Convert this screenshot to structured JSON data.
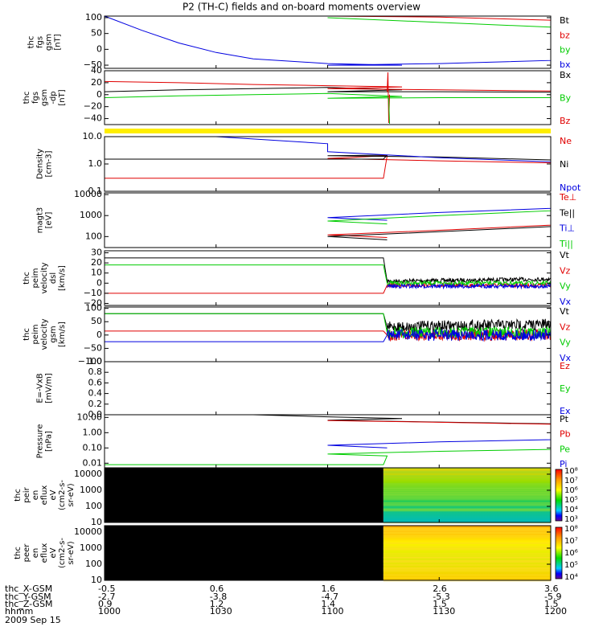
{
  "title": "P2 (TH-C) fields and on-board moments overview",
  "colors": {
    "black": "#000000",
    "red": "#e00000",
    "green": "#00cc00",
    "blue": "#0000e0",
    "yellow": "#ffee00"
  },
  "chart_data": [
    {
      "type": "line",
      "panel": "fgs",
      "ylabel_lines": [
        "thc",
        "fgs",
        "gsm",
        "[nT]"
      ],
      "ticks": [
        "100",
        "50",
        "0",
        "−50"
      ],
      "ylim": [
        -60,
        105
      ],
      "series": [
        {
          "name": "Bt",
          "color": "black",
          "x": [
            1000,
            1200
          ],
          "values": [
            null,
            null
          ]
        },
        {
          "name": "bz",
          "color": "red",
          "x": [
            1100,
            1130,
            1200
          ],
          "values": [
            112,
            102,
            92
          ]
        },
        {
          "name": "by",
          "color": "green",
          "x": [
            1100,
            1130,
            1200
          ],
          "values": [
            100,
            85,
            70
          ]
        },
        {
          "name": "bx",
          "color": "blue",
          "x": [
            1000,
            1010,
            1020,
            1030,
            1040,
            1060,
            1080,
            1100,
            1130,
            1160,
            1200
          ],
          "values": [
            105,
            60,
            20,
            -10,
            -30,
            -45,
            -50,
            -50,
            -45,
            -35,
            -20
          ]
        }
      ]
    },
    {
      "type": "line",
      "panel": "fgs_dp",
      "ylabel_lines": [
        "thc",
        "fgs",
        "gsm",
        "-dp",
        "[nT]"
      ],
      "ticks": [
        "40",
        "20",
        "0",
        "−20",
        "−40"
      ],
      "ylim": [
        -50,
        40
      ],
      "series": [
        {
          "name": "Bx",
          "color": "black",
          "x": [
            1000,
            1020,
            1040,
            1060,
            1080,
            1100,
            1130,
            1160,
            1200
          ],
          "values": [
            5,
            8,
            10,
            12,
            8,
            5,
            5,
            4,
            2
          ]
        },
        {
          "name": "By",
          "color": "green",
          "x": [
            1000,
            1020,
            1040,
            1060,
            1080,
            1100,
            1130,
            1160,
            1200
          ],
          "values": [
            -5,
            -2,
            0,
            2,
            -3,
            -6,
            -5,
            -5,
            -4
          ]
        },
        {
          "name": "Bz",
          "color": "red",
          "x": [
            1000,
            1020,
            1040,
            1060,
            1080,
            1100,
            1130,
            1160,
            1200
          ],
          "values": [
            22,
            20,
            17,
            15,
            13,
            10,
            8,
            6,
            5
          ]
        }
      ],
      "annotation": "spike near 1075"
    },
    {
      "type": "line",
      "panel": "density",
      "ylabel_lines": [
        "Density",
        "[cm-3]"
      ],
      "ticks": [
        "10.0",
        "1.0",
        "0.1"
      ],
      "ylim": [
        0.1,
        10
      ],
      "scale": "log",
      "series": [
        {
          "name": "Ne",
          "color": "red",
          "x": [
            1000,
            1075,
            1076,
            1100,
            1130,
            1160,
            1200
          ],
          "values": [
            0.3,
            0.3,
            2.0,
            1.6,
            1.3,
            1.1,
            0.9
          ]
        },
        {
          "name": "Ni",
          "color": "black",
          "x": [
            1000,
            1075,
            1076,
            1100,
            1130,
            1160,
            1200
          ],
          "values": [
            1.5,
            1.5,
            2.1,
            2.0,
            1.8,
            1.4,
            1.1
          ]
        },
        {
          "name": "Npot",
          "color": "blue",
          "x": [
            1030,
            1060,
            1100,
            1130,
            1160,
            1200
          ],
          "values": [
            10,
            5.5,
            2.8,
            1.7,
            1.2,
            0.9
          ]
        }
      ]
    },
    {
      "type": "line",
      "panel": "mag_temperature",
      "ylabel_lines": [
        "magt3",
        "[eV]"
      ],
      "ticks": [
        "10000",
        "1000",
        "100"
      ],
      "ylim": [
        30,
        12000
      ],
      "scale": "log",
      "series": [
        {
          "name": "Te⊥",
          "color": "red",
          "x": [
            1076,
            1100,
            1130,
            1160,
            1200
          ],
          "values": [
            90,
            120,
            200,
            350,
            700
          ]
        },
        {
          "name": "Te||",
          "color": "black",
          "x": [
            1076,
            1100,
            1130,
            1160,
            1200
          ],
          "values": [
            70,
            100,
            170,
            300,
            900
          ]
        },
        {
          "name": "Ti⊥",
          "color": "blue",
          "x": [
            1076,
            1100,
            1130,
            1160,
            1200
          ],
          "values": [
            600,
            800,
            1400,
            2200,
            3300
          ]
        },
        {
          "name": "Ti||",
          "color": "green",
          "x": [
            1076,
            1100,
            1130,
            1160,
            1200
          ],
          "values": [
            400,
            550,
            1000,
            1700,
            2600
          ]
        }
      ]
    },
    {
      "type": "line",
      "panel": "peim_velocity_dsl",
      "ylabel_lines": [
        "thc",
        "peim",
        "velocity",
        "dsl",
        "[km/s]"
      ],
      "ticks": [
        "30",
        "20",
        "10",
        "0",
        "−10",
        "−20"
      ],
      "ylim": [
        -22,
        32
      ],
      "series": [
        {
          "name": "Vt",
          "color": "black",
          "x": [
            1000,
            1075,
            1076,
            1200
          ],
          "values": [
            25,
            25,
            2,
            4
          ]
        },
        {
          "name": "Vz",
          "color": "red",
          "x": [
            1000,
            1075,
            1076,
            1200
          ],
          "values": [
            -10,
            -10,
            -2,
            -2
          ]
        },
        {
          "name": "Vy",
          "color": "green",
          "x": [
            1000,
            1075,
            1076,
            1200
          ],
          "values": [
            18,
            18,
            0,
            0
          ]
        },
        {
          "name": "Vx",
          "color": "blue",
          "x": [
            1000,
            1075,
            1076,
            1200
          ],
          "values": [
            null,
            null,
            -3,
            -3
          ]
        }
      ]
    },
    {
      "type": "line",
      "panel": "peim_velocity_gsm",
      "ylabel_lines": [
        "thc",
        "peim",
        "velocity",
        "gsm",
        "[km/s]"
      ],
      "ticks": [
        "100",
        "50",
        "0",
        "−50",
        "−100"
      ],
      "ylim": [
        -100,
        105
      ],
      "series": [
        {
          "name": "Vt",
          "color": "black",
          "x": [
            1000,
            1075,
            1076,
            1200
          ],
          "values": [
            80,
            80,
            30,
            40
          ]
        },
        {
          "name": "Vz",
          "color": "red",
          "x": [
            1000,
            1075,
            1076,
            1200
          ],
          "values": [
            15,
            15,
            0,
            0
          ]
        },
        {
          "name": "Vy",
          "color": "green",
          "x": [
            1000,
            1075,
            1076,
            1200
          ],
          "values": [
            80,
            80,
            10,
            10
          ]
        },
        {
          "name": "Vx",
          "color": "blue",
          "x": [
            1000,
            1075,
            1076,
            1200
          ],
          "values": [
            -25,
            -25,
            0,
            0
          ]
        }
      ]
    },
    {
      "type": "line",
      "panel": "e_field",
      "ylabel_lines": [
        "E=-VxB",
        "[mV/m]"
      ],
      "ticks": [
        "1.0",
        "0.8",
        "0.6",
        "0.4",
        "0.2",
        "0.0"
      ],
      "ylim": [
        0,
        1
      ],
      "series": [
        {
          "name": "Ez",
          "color": "red",
          "x": [],
          "values": []
        },
        {
          "name": "Ey",
          "color": "green",
          "x": [],
          "values": []
        },
        {
          "name": "Ex",
          "color": "blue",
          "x": [],
          "values": []
        }
      ]
    },
    {
      "type": "line",
      "panel": "pressure",
      "ylabel_lines": [
        "Pressure",
        "[nPa]"
      ],
      "ticks": [
        "10.00",
        "1.00",
        "0.10",
        "0.01"
      ],
      "ylim": [
        0.005,
        15
      ],
      "scale": "log",
      "series": [
        {
          "name": "Pt",
          "color": "black",
          "x": [
            1040,
            1060,
            1080,
            1100,
            1130,
            1160,
            1200
          ],
          "values": [
            15,
            11,
            8.5,
            6.5,
            5.0,
            3.8,
            2.5
          ]
        },
        {
          "name": "Pb",
          "color": "red",
          "x": [
            1100,
            1130,
            1160,
            1200
          ],
          "values": [
            6.3,
            4.8,
            3.6,
            2.4
          ]
        },
        {
          "name": "Pe",
          "color": "green",
          "x": [
            1000,
            1075,
            1076,
            1100,
            1130,
            1160,
            1200
          ],
          "values": [
            0.008,
            0.008,
            0.03,
            0.04,
            0.06,
            0.08,
            0.12
          ]
        },
        {
          "name": "Pi",
          "color": "blue",
          "x": [
            1000,
            1075,
            1076,
            1100,
            1130,
            1160,
            1200
          ],
          "values": [
            null,
            null,
            0.1,
            0.15,
            0.25,
            0.35,
            0.4
          ]
        }
      ]
    },
    {
      "type": "heatmap",
      "panel": "peir_energy_spectrum",
      "ylabel_lines": [
        "thc",
        "peir",
        "en",
        "eflux",
        "eV",
        "(cm2-s-",
        "sr-eV)"
      ],
      "ticks": [
        "10000",
        "1000",
        "100",
        "10"
      ],
      "ylim": [
        10,
        25000
      ],
      "scale": "log",
      "colorbar_ticks": [
        "10⁸",
        "10⁷",
        "10⁶",
        "10⁵",
        "10⁴",
        "10³"
      ],
      "no_data_before": 1075
    },
    {
      "type": "heatmap",
      "panel": "peer_energy_spectrum",
      "ylabel_lines": [
        "thc",
        "peer",
        "en",
        "eflux",
        "eV",
        "(cm2-s-",
        "sr-eV)"
      ],
      "ticks": [
        "10000",
        "1000",
        "100",
        "10"
      ],
      "ylim": [
        10,
        25000
      ],
      "scale": "log",
      "colorbar_ticks": [
        "10⁸",
        "10⁷",
        "10⁶",
        "10⁵",
        "10⁴"
      ],
      "no_data_before": 1075
    }
  ],
  "xaxis": {
    "row_labels": [
      "thc_X-GSM",
      "thc_Y-GSM",
      "thc_Z-GSM",
      "hhmm",
      "2009 Sep 15"
    ],
    "columns": [
      {
        "x": "1000",
        "X": "-0.5",
        "Y": "-2.7",
        "Z": "0.9",
        "hhmm": "1000"
      },
      {
        "x": "1030",
        "X": "0.6",
        "Y": "-3.8",
        "Z": "1.2",
        "hhmm": "1030"
      },
      {
        "x": "1100",
        "X": "1.6",
        "Y": "-4.7",
        "Z": "1.4",
        "hhmm": "1100"
      },
      {
        "x": "1130",
        "X": "2.6",
        "Y": "-5.3",
        "Z": "1.5",
        "hhmm": "1130"
      },
      {
        "x": "1200",
        "X": "3.6",
        "Y": "-5.9",
        "Z": "1.5",
        "hhmm": "1200"
      }
    ]
  }
}
